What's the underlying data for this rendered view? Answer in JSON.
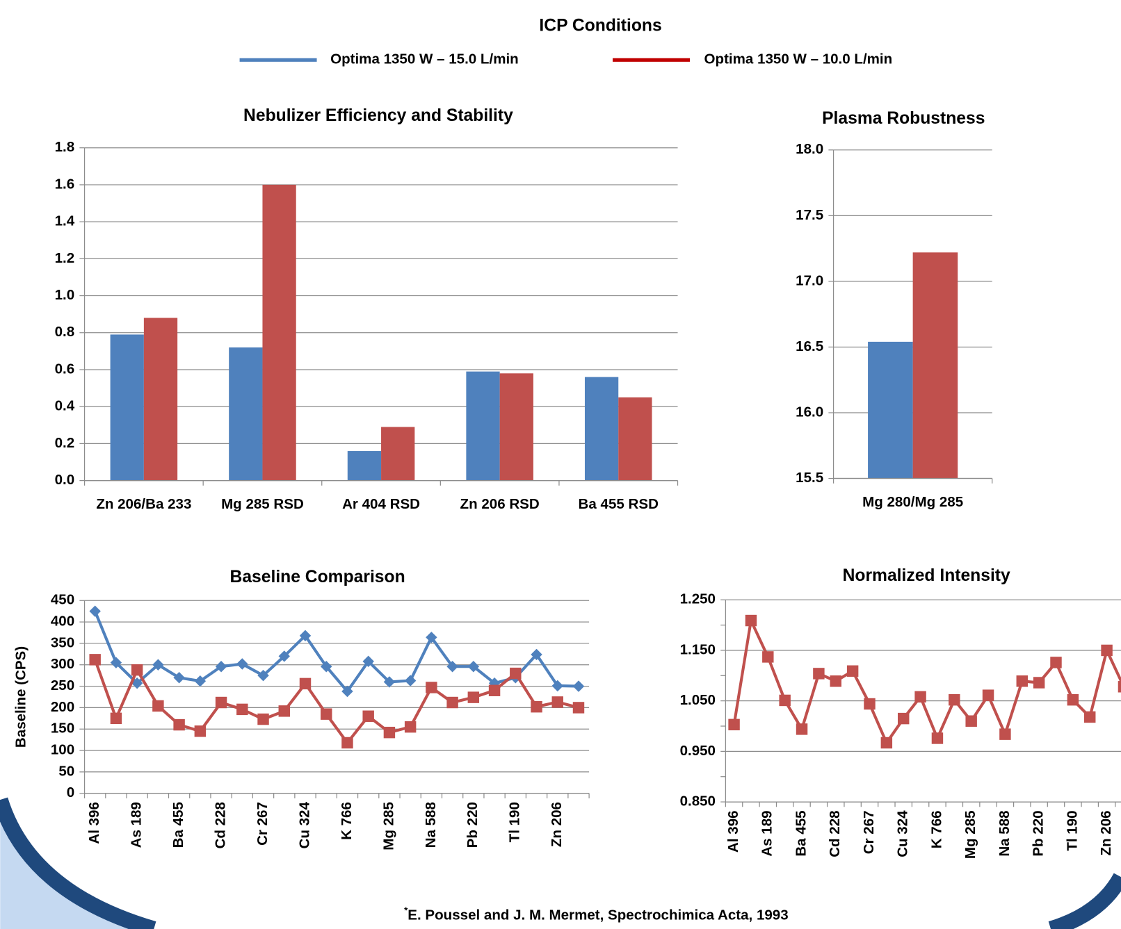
{
  "title": "ICP Conditions",
  "footnote_marker": "*",
  "footnote": "E. Poussel and J. M. Mermet, Spectrochimica Acta, 1993",
  "chart_data": [
    {
      "type": "bar",
      "title": "Nebulizer Efficiency and Stability",
      "categories": [
        "Zn 206/Ba 233",
        "Mg 285 RSD",
        "Ar 404 RSD",
        "Zn 206 RSD",
        "Ba 455 RSD"
      ],
      "series": [
        {
          "name": "Optima 1350 W – 15.0 L/min",
          "color": "#4f81bd",
          "values": [
            0.79,
            0.72,
            0.16,
            0.59,
            0.56
          ]
        },
        {
          "name": "Optima 1350 W – 10.0 L/min",
          "color": "#c0504d",
          "values": [
            0.88,
            1.6,
            0.29,
            0.58,
            0.45
          ]
        }
      ],
      "ylim": [
        0,
        1.8
      ],
      "yticks": [
        {
          "value": 0,
          "label": "0.0"
        },
        0.2,
        0.4,
        0.6,
        0.8,
        {
          "value": 1,
          "label": "1.0"
        },
        1.2,
        1.4,
        1.6,
        1.8
      ],
      "grid": true
    },
    {
      "type": "bar",
      "title": "Plasma Robustness",
      "categories": [
        "Mg 280/Mg 285"
      ],
      "series": [
        {
          "color": "#4f81bd",
          "values": [
            16.54
          ]
        },
        {
          "color": "#c0504d",
          "values": [
            17.22
          ]
        }
      ],
      "ylim": [
        15.5,
        18
      ],
      "yticks": [
        15.5,
        {
          "value": 16,
          "label": "16.0"
        },
        16.5,
        {
          "value": 17,
          "label": "17.0"
        },
        17.5,
        {
          "value": 18,
          "label": "18.0"
        }
      ],
      "grid": true
    },
    {
      "type": "line",
      "title": "Baseline Comparison",
      "y_label": "Baseline (CPS)",
      "categories": [
        "Al 396",
        null,
        "As 189",
        null,
        "Ba 455",
        null,
        "Cd 228",
        null,
        "Cr 267",
        null,
        "Cu 324",
        null,
        "K 766",
        null,
        "Mg 285",
        null,
        "Na 588",
        null,
        "Pb  220",
        null,
        "Tl 190",
        null,
        "Zn 206",
        null
      ],
      "series": [
        {
          "color": "#4f81bd",
          "marker": "diamond",
          "values": [
            425,
            305,
            257,
            300,
            270,
            262,
            296,
            302,
            275,
            320,
            368,
            296,
            238,
            308,
            260,
            263,
            364,
            296,
            296,
            257,
            270,
            324,
            251,
            250
          ]
        },
        {
          "color": "#c0504d",
          "marker": "square",
          "values": [
            312,
            175,
            288,
            204,
            160,
            145,
            212,
            196,
            173,
            192,
            256,
            185,
            118,
            180,
            142,
            155,
            247,
            212,
            224,
            240,
            280,
            202,
            213,
            200
          ]
        }
      ],
      "ylim": [
        0,
        450
      ],
      "yticks": [
        0,
        50,
        100,
        150,
        200,
        250,
        300,
        350,
        400,
        450
      ],
      "grid": true
    },
    {
      "type": "line",
      "title": "Normalized Intensity",
      "categories": [
        "Al 396",
        null,
        "As 189",
        null,
        "Ba 455",
        null,
        "Cd 228",
        null,
        "Cr 267",
        null,
        "Cu 324",
        null,
        "K 766",
        null,
        "Mg 285",
        null,
        "Na 588",
        null,
        "Pb  220",
        null,
        "Tl 190",
        null,
        "Zn 206",
        null
      ],
      "series": [
        {
          "color": "#c0504d",
          "marker": "square",
          "values": [
            1.003,
            1.209,
            1.137,
            1.051,
            0.994,
            1.104,
            1.089,
            1.109,
            1.044,
            0.967,
            1.015,
            1.058,
            0.976,
            1.052,
            1.01,
            1.061,
            0.984,
            1.089,
            1.086,
            1.126,
            1.052,
            1.018,
            1.15,
            1.078
          ]
        }
      ],
      "ylim": [
        0.85,
        1.25
      ],
      "yticks": [
        {
          "value": 0.85,
          "label": "0.850"
        },
        {
          "value": 0.95,
          "label": "0.950"
        },
        {
          "value": 1.05,
          "label": "1.050"
        },
        {
          "value": 1.15,
          "label": "1.150"
        },
        {
          "value": 1.25,
          "label": "1.250"
        }
      ],
      "minor_yticks": [
        0.9,
        1.0,
        1.1,
        1.2
      ],
      "grid": true
    }
  ]
}
